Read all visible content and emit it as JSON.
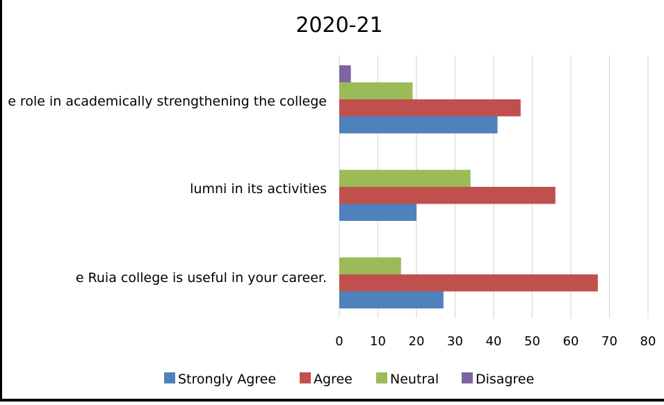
{
  "chart_data": {
    "type": "bar",
    "orientation": "horizontal",
    "title": "2020-21",
    "categories": [
      "e role in academically strengthening the college",
      "lumni in its activities",
      "e Ruia college  is useful in your career."
    ],
    "series": [
      {
        "name": "Strongly Agree",
        "color": "#4f81bd",
        "values": [
          41,
          20,
          27
        ]
      },
      {
        "name": "Agree",
        "color": "#c0504d",
        "values": [
          47,
          56,
          67
        ]
      },
      {
        "name": "Neutral",
        "color": "#9bbb59",
        "values": [
          19,
          34,
          16
        ]
      },
      {
        "name": "Disagree",
        "color": "#8064a2",
        "values": [
          3,
          0,
          0
        ]
      }
    ],
    "xlim": [
      0,
      80
    ],
    "xticks": [
      0,
      10,
      20,
      30,
      40,
      50,
      60,
      70,
      80
    ],
    "grid": true,
    "legend_position": "bottom"
  }
}
